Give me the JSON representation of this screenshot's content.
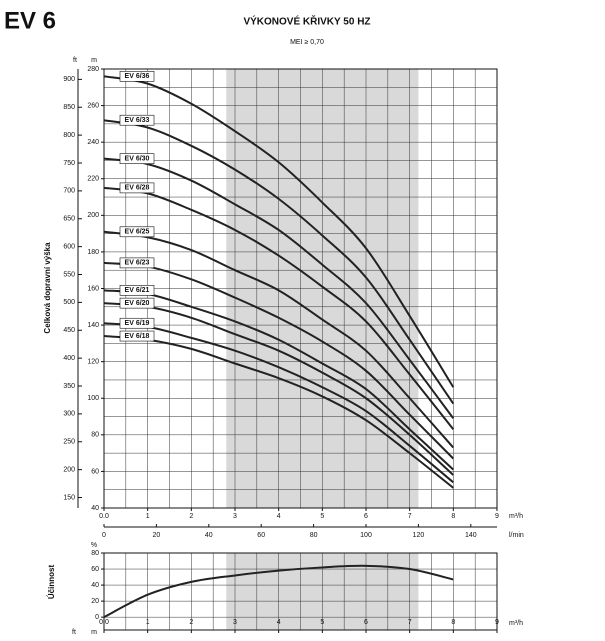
{
  "chart_data": [
    {
      "type": "line",
      "model": "EV 6",
      "title": "VÝKONOVÉ KŘIVKY 50 HZ",
      "subtitle": "MEI ≥ 0,70",
      "y_label": "Celková dopravní výška",
      "y_unit": "m",
      "y2_unit": "ft",
      "x_unit": "m³/h",
      "x2_unit": "l/min",
      "x": [
        0,
        1,
        2,
        3,
        4,
        5,
        6,
        7,
        8
      ],
      "xlim": [
        0,
        9
      ],
      "xticks": [
        {
          "value": 0,
          "label": "0.0"
        },
        1,
        2,
        3,
        4,
        5,
        6,
        7,
        8,
        9
      ],
      "xgrid": [
        0,
        0.5,
        1,
        1.5,
        2,
        2.5,
        3,
        3.5,
        4,
        4.5,
        5,
        5.5,
        6,
        6.5,
        7,
        7.5,
        8,
        8.5,
        9
      ],
      "x2lim": [
        0,
        150
      ],
      "x2ticks": [
        0,
        20,
        40,
        60,
        80,
        100,
        120,
        140
      ],
      "ylim": [
        40,
        280
      ],
      "yticks": [
        40,
        60,
        80,
        100,
        120,
        140,
        160,
        180,
        200,
        220,
        240,
        260,
        280
      ],
      "ygrid": [
        40,
        50,
        60,
        70,
        80,
        90,
        100,
        110,
        120,
        130,
        140,
        150,
        160,
        170,
        180,
        190,
        200,
        210,
        220,
        230,
        240,
        250,
        260,
        270,
        280
      ],
      "y2lim": [
        131.2,
        918.6
      ],
      "y2ticks": [
        150,
        200,
        250,
        300,
        350,
        400,
        450,
        500,
        550,
        600,
        650,
        700,
        750,
        800,
        850,
        900
      ],
      "shaded_range": [
        2.8,
        7.2
      ],
      "color": "#222222",
      "series": [
        {
          "name": "EV 6/36",
          "values": [
            276,
            272,
            261,
            246,
            229,
            207,
            182,
            145,
            106
          ]
        },
        {
          "name": "EV 6/33",
          "values": [
            252,
            248,
            238,
            225,
            209,
            189,
            166,
            132,
            97
          ]
        },
        {
          "name": "EV 6/30",
          "values": [
            231,
            228,
            219,
            206,
            192,
            173,
            152,
            121,
            89
          ]
        },
        {
          "name": "EV 6/28",
          "values": [
            215,
            212,
            203,
            192,
            178,
            161,
            142,
            113,
            83
          ]
        },
        {
          "name": "EV 6/25",
          "values": [
            191,
            188,
            181,
            170,
            159,
            143,
            126,
            100,
            73
          ]
        },
        {
          "name": "EV 6/23",
          "values": [
            174,
            172,
            165,
            155,
            144,
            131,
            115,
            91,
            67
          ]
        },
        {
          "name": "EV 6/21",
          "values": [
            159,
            157,
            150,
            142,
            132,
            119,
            105,
            83,
            61
          ]
        },
        {
          "name": "EV 6/20",
          "values": [
            152,
            150,
            144,
            135,
            126,
            114,
            100,
            80,
            58
          ]
        },
        {
          "name": "EV 6/19",
          "values": [
            141,
            139,
            133,
            126,
            117,
            106,
            93,
            74,
            54
          ]
        },
        {
          "name": "EV 6/18",
          "values": [
            134,
            132,
            127,
            119,
            111,
            101,
            88,
            70,
            51
          ]
        }
      ]
    },
    {
      "type": "line",
      "y_label": "Účinnost",
      "y_unit": "%",
      "x_unit": "m³/h",
      "y2_unit": "ft",
      "y3_unit": "m",
      "x": [
        0,
        1,
        2,
        3,
        4,
        5,
        6,
        7,
        8
      ],
      "xlim": [
        0,
        9
      ],
      "xticks": [
        {
          "value": 0,
          "label": "0.0"
        },
        1,
        2,
        3,
        4,
        5,
        6,
        7,
        8,
        9
      ],
      "xgrid": [
        0,
        0.5,
        1,
        1.5,
        2,
        2.5,
        3,
        3.5,
        4,
        4.5,
        5,
        5.5,
        6,
        6.5,
        7,
        7.5,
        8,
        8.5,
        9
      ],
      "ylim": [
        -16,
        80
      ],
      "yticks": [
        0,
        20,
        40,
        60,
        80
      ],
      "ygrid": [
        0,
        20,
        40,
        60,
        80
      ],
      "shaded_range": [
        2.8,
        7.2
      ],
      "color": "#222222",
      "values": [
        0,
        28,
        44,
        52,
        58,
        62,
        64,
        60,
        47
      ]
    }
  ]
}
